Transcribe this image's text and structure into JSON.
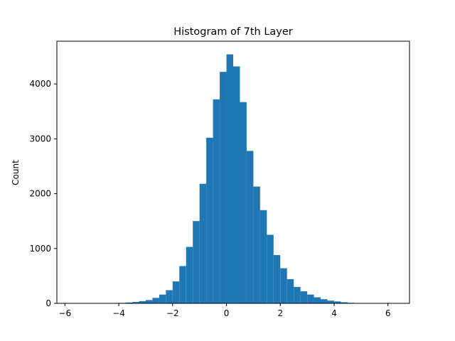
{
  "chart_data": {
    "type": "bar",
    "title": "Histogram of 7th Layer",
    "xlabel": "",
    "ylabel": "Count",
    "xlim": [
      -6.3,
      6.8
    ],
    "ylim": [
      0,
      4780
    ],
    "grid": false,
    "bar_color": "#1f77b4",
    "bin_edges": [
      -6.0,
      -5.75,
      -5.5,
      -5.25,
      -5.0,
      -4.75,
      -4.5,
      -4.25,
      -4.0,
      -3.75,
      -3.5,
      -3.25,
      -3.0,
      -2.75,
      -2.5,
      -2.25,
      -2.0,
      -1.75,
      -1.5,
      -1.25,
      -1.0,
      -0.75,
      -0.5,
      -0.25,
      0.0,
      0.25,
      0.5,
      0.75,
      1.0,
      1.25,
      1.5,
      1.75,
      2.0,
      2.25,
      2.5,
      2.75,
      3.0,
      3.25,
      3.5,
      3.75,
      4.0,
      4.25,
      4.5,
      4.75,
      5.0,
      5.25,
      5.5,
      5.75,
      6.0,
      6.25
    ],
    "values": [
      1,
      0,
      0,
      1,
      1,
      2,
      3,
      5,
      8,
      15,
      25,
      40,
      60,
      100,
      160,
      240,
      400,
      680,
      1030,
      1500,
      2180,
      3020,
      3720,
      4220,
      4540,
      4320,
      3670,
      2780,
      2130,
      1700,
      1250,
      880,
      640,
      440,
      300,
      220,
      160,
      110,
      75,
      50,
      35,
      20,
      10,
      5,
      3,
      2,
      1,
      1,
      1
    ],
    "x_ticks": [
      -6,
      -4,
      -2,
      0,
      2,
      4,
      6
    ],
    "x_tick_labels": [
      "−6",
      "−4",
      "−2",
      "0",
      "2",
      "4",
      "6"
    ],
    "y_ticks": [
      0,
      1000,
      2000,
      3000,
      4000
    ],
    "y_tick_labels": [
      "0",
      "1000",
      "2000",
      "3000",
      "4000"
    ]
  }
}
